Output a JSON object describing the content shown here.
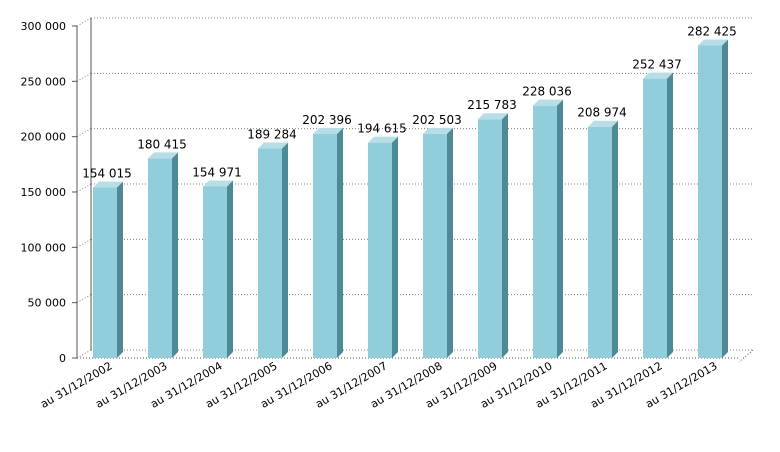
{
  "chart_data": {
    "type": "bar",
    "categories": [
      "au 31/12/2002",
      "au 31/12/2003",
      "au 31/12/2004",
      "au 31/12/2005",
      "au 31/12/2006",
      "au 31/12/2007",
      "au 31/12/2008",
      "au 31/12/2009",
      "au 31/12/2010",
      "au 31/12/2011",
      "au 31/12/2012",
      "au 31/12/2013"
    ],
    "values": [
      154015,
      180415,
      154971,
      189284,
      202396,
      194615,
      202503,
      215783,
      228036,
      208974,
      252437,
      282425
    ],
    "value_labels": [
      "154 015",
      "180 415",
      "154 971",
      "189 284",
      "202 396",
      "194 615",
      "202 503",
      "215 783",
      "228 036",
      "208 974",
      "252 437",
      "282 425"
    ],
    "yticks": [
      0,
      50000,
      100000,
      150000,
      200000,
      250000,
      300000
    ],
    "ytick_labels": [
      "0",
      "50 000",
      "100 000",
      "150 000",
      "200 000",
      "250 000",
      "300 000"
    ],
    "ylim": [
      0,
      300000
    ],
    "title": "",
    "xlabel": "",
    "ylabel": "",
    "grid": true,
    "legend": "none",
    "bar_style": "3d",
    "colors": {
      "bar_front": "#92cddc",
      "bar_side": "#4d8a95",
      "bar_top": "#b7dde6",
      "grid": "#808080",
      "wall": "#555555"
    }
  }
}
